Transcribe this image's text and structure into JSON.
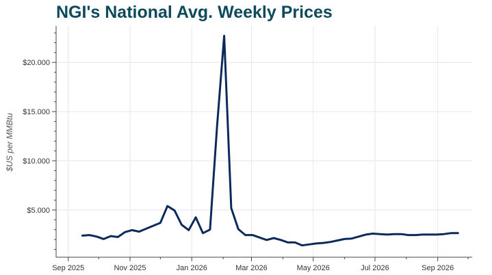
{
  "title": "NGI's National Avg. Weekly Prices",
  "watermark": "",
  "chart_data": {
    "type": "line",
    "title": "NGI's National Avg. Weekly Prices",
    "xlabel": "",
    "ylabel": "$US per MMBtu",
    "x_ticks": [
      "2025-09-01",
      "2025-11-01",
      "2026-01-01",
      "2026-03-01",
      "2026-05-01",
      "2026-07-01",
      "2026-09-01"
    ],
    "x_tick_labels": [
      "Sep 2025",
      "Nov 2025",
      "Jan 2026",
      "Mar 2026",
      "May 2026",
      "Jul 2026",
      "Sep 2026"
    ],
    "y_ticks": [
      5,
      10,
      15,
      20
    ],
    "y_tick_labels": [
      "$5.000",
      "$10.000",
      "$15.000",
      "$20.000"
    ],
    "xlim": [
      "2025-08-20",
      "2026-10-05"
    ],
    "ylim": [
      0.2,
      23.7
    ],
    "grid": true,
    "line_color": "#0b2a5b",
    "series": [
      {
        "x": [
          "2025-09-15",
          "2025-09-22",
          "2025-09-29",
          "2025-10-06",
          "2025-10-13",
          "2025-10-20",
          "2025-10-27",
          "2025-11-03",
          "2025-11-10",
          "2025-11-17",
          "2025-11-24",
          "2025-12-01",
          "2025-12-08",
          "2025-12-15",
          "2025-12-22",
          "2025-12-29",
          "2026-01-05",
          "2026-01-12",
          "2026-01-19",
          "2026-01-26",
          "2026-02-02",
          "2026-02-09",
          "2026-02-16",
          "2026-02-23",
          "2026-03-02",
          "2026-03-09",
          "2026-03-16",
          "2026-03-23",
          "2026-03-30",
          "2026-04-06",
          "2026-04-13",
          "2026-04-20",
          "2026-04-27",
          "2026-05-04",
          "2026-05-11",
          "2026-05-18",
          "2026-05-25",
          "2026-06-01",
          "2026-06-08",
          "2026-06-15",
          "2026-06-22",
          "2026-06-29",
          "2026-07-06",
          "2026-07-13",
          "2026-07-20",
          "2026-07-27",
          "2026-08-03",
          "2026-08-10",
          "2026-08-17",
          "2026-08-24",
          "2026-08-31",
          "2026-09-07",
          "2026-09-14",
          "2026-09-21"
        ],
        "y": [
          2.4,
          2.45,
          2.3,
          2.05,
          2.35,
          2.25,
          2.75,
          2.95,
          2.8,
          3.1,
          3.4,
          3.7,
          5.4,
          4.95,
          3.5,
          2.95,
          4.25,
          2.65,
          3.0,
          13.5,
          22.7,
          5.2,
          3.05,
          2.45,
          2.45,
          2.2,
          1.95,
          2.15,
          1.95,
          1.7,
          1.7,
          1.4,
          1.5,
          1.6,
          1.65,
          1.75,
          1.9,
          2.05,
          2.1,
          2.3,
          2.5,
          2.6,
          2.55,
          2.5,
          2.55,
          2.55,
          2.45,
          2.45,
          2.5,
          2.5,
          2.5,
          2.55,
          2.65,
          2.65
        ]
      }
    ]
  }
}
